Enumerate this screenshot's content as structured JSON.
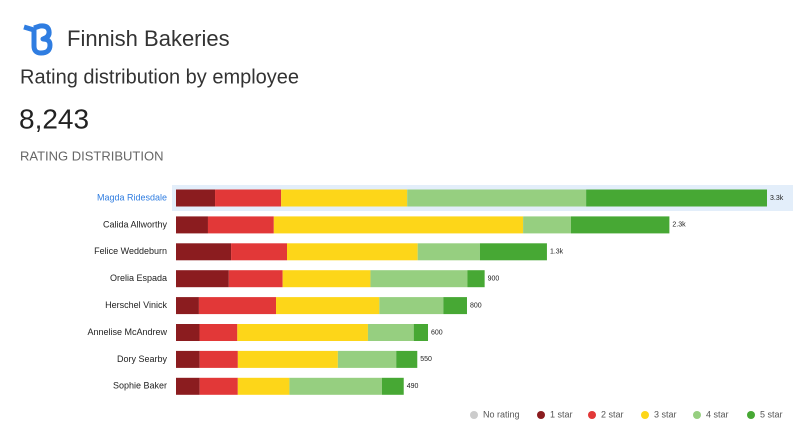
{
  "brand": "Finnish Bakeries",
  "page_title": "Rating distribution by employee",
  "headline_value": "8,243",
  "section_label": "RATING DISTRIBUTION",
  "chart_data": {
    "type": "stacked-barh",
    "xscale": "sqrt",
    "highlight_index": 0,
    "legend": "bottom-right",
    "categories": [
      "Magda Ridesdale",
      "Calida Allworthy",
      "Felice Weddeburn",
      "Orelia Espada",
      "Herschel Vinick",
      "Annelise McAndrew",
      "Dory Searby",
      "Sophie Baker"
    ],
    "totals": [
      3300,
      2300,
      1300,
      900,
      800,
      600,
      550,
      490
    ],
    "total_labels": [
      "3.3k",
      "2.3k",
      "1.3k",
      "900",
      "800",
      "600",
      "550",
      "490"
    ],
    "series": [
      {
        "name": "No rating",
        "color": "#cccccc",
        "values": [
          0,
          0,
          0,
          0,
          0,
          0,
          0,
          0
        ]
      },
      {
        "name": "1 star",
        "color": "#8b1c1f",
        "values": [
          218,
          149,
          193,
          154,
          63,
          56,
          54,
          51
        ]
      },
      {
        "name": "2 star",
        "color": "#e23838",
        "values": [
          369,
          307,
          196,
          157,
          212,
          90,
          87,
          82
        ]
      },
      {
        "name": "3 star",
        "color": "#fdd619",
        "values": [
          704,
          1162,
          458,
          256,
          284,
          311,
          228,
          111
        ]
      },
      {
        "name": "4 star",
        "color": "#96cf80",
        "values": [
          999,
          223,
          218,
          283,
          176,
          109,
          133,
          199
        ]
      },
      {
        "name": "5 star",
        "color": "#47a834",
        "values": [
          1010,
          459,
          235,
          50,
          65,
          34,
          48,
          47
        ]
      }
    ]
  }
}
